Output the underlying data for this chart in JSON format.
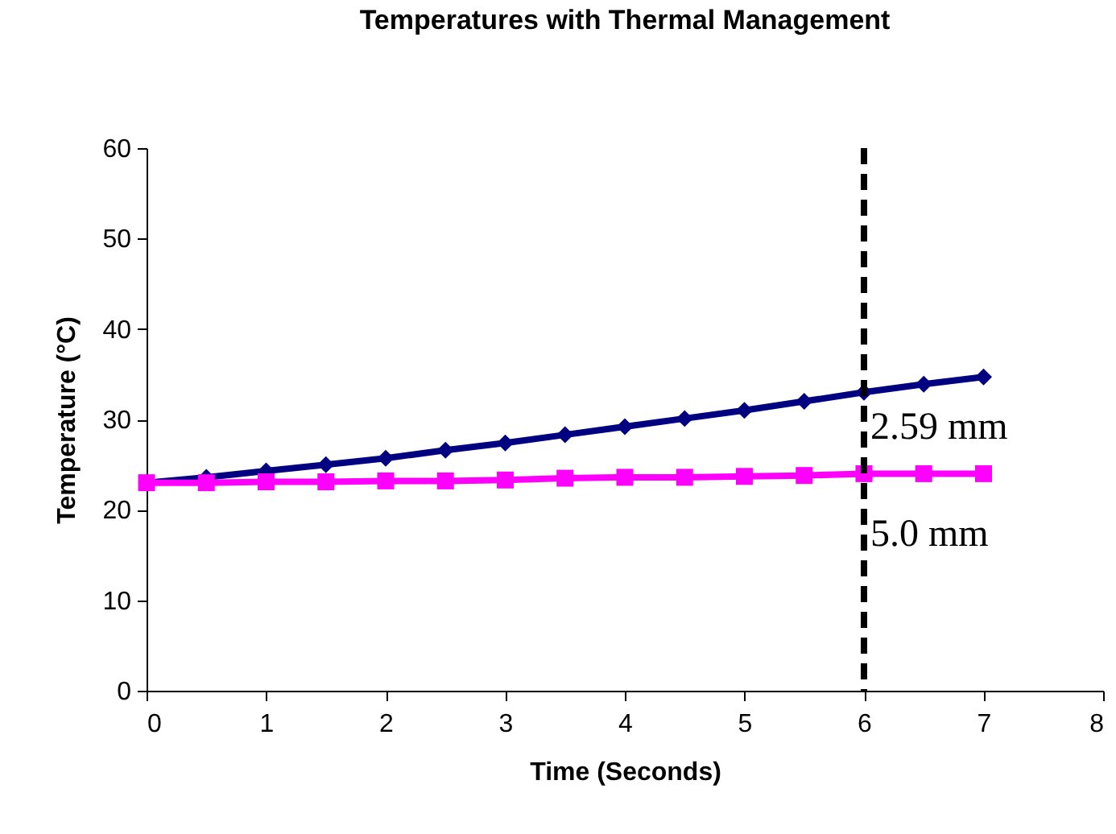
{
  "chart_data": {
    "type": "line",
    "title": "Temperatures with Thermal Management",
    "xlabel": "Time (Seconds)",
    "ylabel": "Temperature (°C)",
    "x": [
      0,
      0.5,
      1,
      1.5,
      2,
      2.5,
      3,
      3.5,
      4,
      4.5,
      5,
      5.5,
      6,
      6.5,
      7
    ],
    "series": [
      {
        "name": "2.59 mm",
        "color": "#000080",
        "marker": "diamond",
        "values": [
          23,
          23.6,
          24.3,
          25,
          25.7,
          26.6,
          27.4,
          28.3,
          29.2,
          30.1,
          31,
          32,
          33,
          33.9,
          34.7
        ]
      },
      {
        "name": "5.0 mm",
        "color": "#ff00ff",
        "marker": "square",
        "values": [
          23,
          23,
          23.1,
          23.1,
          23.2,
          23.2,
          23.3,
          23.5,
          23.6,
          23.6,
          23.7,
          23.8,
          24,
          24,
          24
        ]
      }
    ],
    "xlim": [
      0,
      8
    ],
    "xticks": [
      0,
      1,
      2,
      3,
      4,
      5,
      6,
      7,
      8
    ],
    "ylim": [
      0,
      60
    ],
    "yticks": [
      0,
      10,
      20,
      30,
      40,
      50,
      60
    ],
    "ref_lines": [
      {
        "axis": "x",
        "value": 6,
        "color": "#000000",
        "line_style": "dashed"
      }
    ],
    "grid": false
  }
}
